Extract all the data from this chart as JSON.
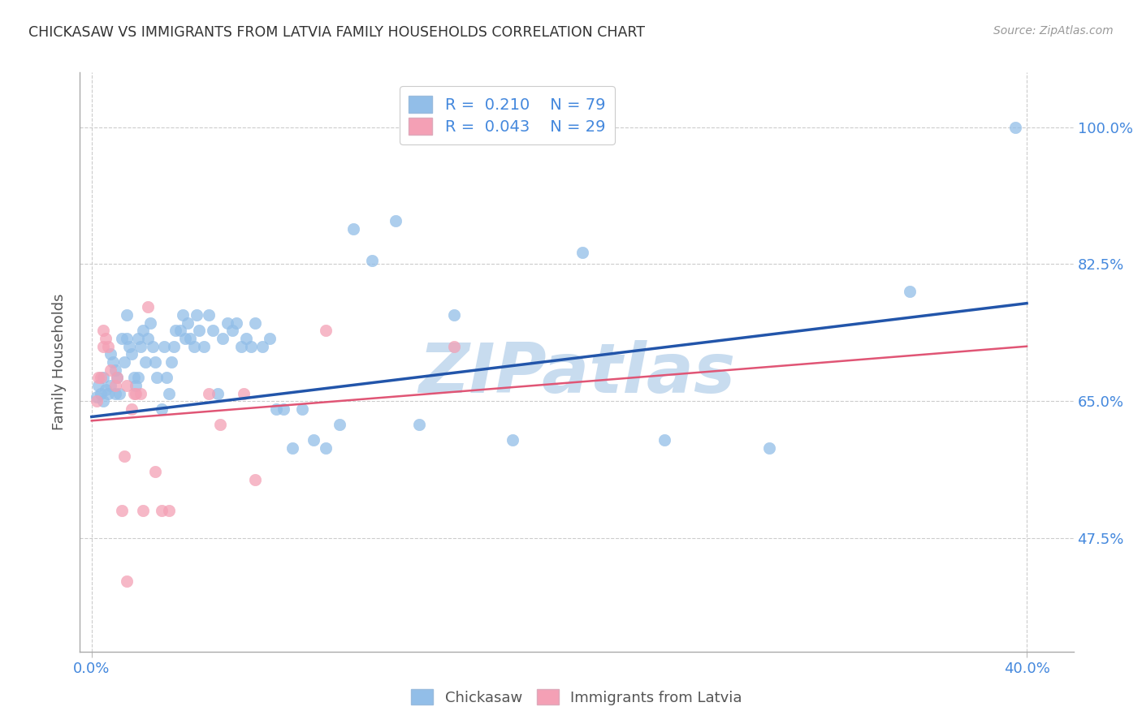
{
  "title": "CHICKASAW VS IMMIGRANTS FROM LATVIA FAMILY HOUSEHOLDS CORRELATION CHART",
  "source": "Source: ZipAtlas.com",
  "ylabel": "Family Households",
  "yticks": [
    "47.5%",
    "65.0%",
    "82.5%",
    "100.0%"
  ],
  "ytick_values": [
    0.475,
    0.65,
    0.825,
    1.0
  ],
  "xtick_values": [
    0.0,
    0.4
  ],
  "xtick_labels": [
    "0.0%",
    "40.0%"
  ],
  "xlim": [
    -0.005,
    0.42
  ],
  "ylim": [
    0.33,
    1.07
  ],
  "blue_color": "#92BEE8",
  "pink_color": "#F4A0B5",
  "blue_line_color": "#2255AA",
  "pink_line_color": "#E05575",
  "text_color": "#4488DD",
  "R_blue": 0.21,
  "N_blue": 79,
  "R_pink": 0.043,
  "N_pink": 29,
  "blue_x": [
    0.002,
    0.003,
    0.004,
    0.005,
    0.005,
    0.006,
    0.007,
    0.008,
    0.008,
    0.009,
    0.01,
    0.01,
    0.011,
    0.012,
    0.013,
    0.014,
    0.015,
    0.015,
    0.016,
    0.017,
    0.018,
    0.019,
    0.02,
    0.02,
    0.021,
    0.022,
    0.023,
    0.024,
    0.025,
    0.026,
    0.027,
    0.028,
    0.03,
    0.031,
    0.032,
    0.033,
    0.034,
    0.035,
    0.036,
    0.038,
    0.039,
    0.04,
    0.041,
    0.042,
    0.044,
    0.045,
    0.046,
    0.048,
    0.05,
    0.052,
    0.054,
    0.056,
    0.058,
    0.06,
    0.062,
    0.064,
    0.066,
    0.068,
    0.07,
    0.073,
    0.076,
    0.079,
    0.082,
    0.086,
    0.09,
    0.095,
    0.1,
    0.106,
    0.112,
    0.12,
    0.13,
    0.14,
    0.155,
    0.18,
    0.21,
    0.245,
    0.29,
    0.35,
    0.395
  ],
  "blue_y": [
    0.655,
    0.67,
    0.66,
    0.68,
    0.65,
    0.665,
    0.66,
    0.67,
    0.71,
    0.7,
    0.69,
    0.66,
    0.68,
    0.66,
    0.73,
    0.7,
    0.73,
    0.76,
    0.72,
    0.71,
    0.68,
    0.67,
    0.68,
    0.73,
    0.72,
    0.74,
    0.7,
    0.73,
    0.75,
    0.72,
    0.7,
    0.68,
    0.64,
    0.72,
    0.68,
    0.66,
    0.7,
    0.72,
    0.74,
    0.74,
    0.76,
    0.73,
    0.75,
    0.73,
    0.72,
    0.76,
    0.74,
    0.72,
    0.76,
    0.74,
    0.66,
    0.73,
    0.75,
    0.74,
    0.75,
    0.72,
    0.73,
    0.72,
    0.75,
    0.72,
    0.73,
    0.64,
    0.64,
    0.59,
    0.64,
    0.6,
    0.59,
    0.62,
    0.87,
    0.83,
    0.88,
    0.62,
    0.76,
    0.6,
    0.84,
    0.6,
    0.59,
    0.79,
    1.0
  ],
  "pink_x": [
    0.002,
    0.003,
    0.004,
    0.005,
    0.005,
    0.006,
    0.007,
    0.008,
    0.01,
    0.011,
    0.013,
    0.014,
    0.015,
    0.017,
    0.019,
    0.021,
    0.024,
    0.027,
    0.03,
    0.033,
    0.05,
    0.055,
    0.065,
    0.07,
    0.015,
    0.018,
    0.022,
    0.155,
    0.1
  ],
  "pink_y": [
    0.65,
    0.68,
    0.68,
    0.72,
    0.74,
    0.73,
    0.72,
    0.69,
    0.67,
    0.68,
    0.51,
    0.58,
    0.67,
    0.64,
    0.66,
    0.66,
    0.77,
    0.56,
    0.51,
    0.51,
    0.66,
    0.62,
    0.66,
    0.55,
    0.42,
    0.66,
    0.51,
    0.72,
    0.74
  ],
  "watermark": "ZIPatlas",
  "watermark_color": "#C8DCEF",
  "legend_blue_label": "Chickasaw",
  "legend_pink_label": "Immigrants from Latvia",
  "blue_trend_x": [
    0.0,
    0.4
  ],
  "blue_trend_y": [
    0.63,
    0.775
  ],
  "pink_trend_x": [
    0.0,
    0.4
  ],
  "pink_trend_y": [
    0.625,
    0.72
  ]
}
